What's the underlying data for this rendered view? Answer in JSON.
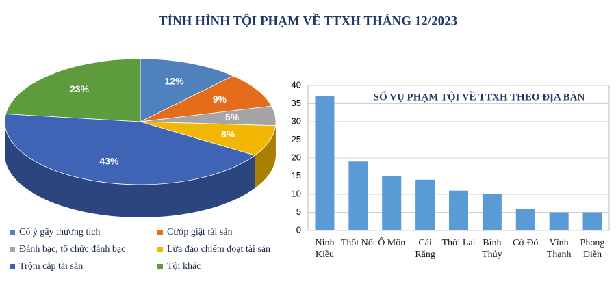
{
  "title": "TÌNH HÌNH TỘI PHẠM VỀ TTXH THÁNG 12/2023",
  "chart_data": [
    {
      "type": "pie",
      "categories": [
        "Cố ý gây thương tích",
        "Cướp giật tài sản",
        "Đánh bạc, tổ chức đánh bạc",
        "Lừa đảo chiếm đoạt tài sản",
        "Trộm cắp tài sản",
        "Tội khác"
      ],
      "values": [
        12,
        9,
        5,
        8,
        43,
        23
      ],
      "value_labels": [
        "12%",
        "9%",
        "5%",
        "8%",
        "43%",
        "23%"
      ],
      "colors": [
        "#4f81bd",
        "#e46c1a",
        "#a5a5a5",
        "#f2b705",
        "#3f63b5",
        "#5e9b3d"
      ]
    },
    {
      "type": "bar",
      "title": "SỐ VỤ PHẠM TỘI VỀ TTXH  THEO  ĐỊA BÀN",
      "categories": [
        "Ninh Kiều",
        "Thốt Nốt",
        "Ô Môn",
        "Cái Răng",
        "Thới Lai",
        "Bình Thủy",
        "Cờ Đỏ",
        "Vĩnh Thạnh",
        "Phong Điền"
      ],
      "values": [
        37,
        19,
        15,
        14,
        11,
        10,
        6,
        5,
        5
      ],
      "color": "#5b9bd5",
      "ylim": [
        0,
        40
      ],
      "yticks": [
        0,
        5,
        10,
        15,
        20,
        25,
        30,
        35,
        40
      ],
      "grid": true
    }
  ]
}
